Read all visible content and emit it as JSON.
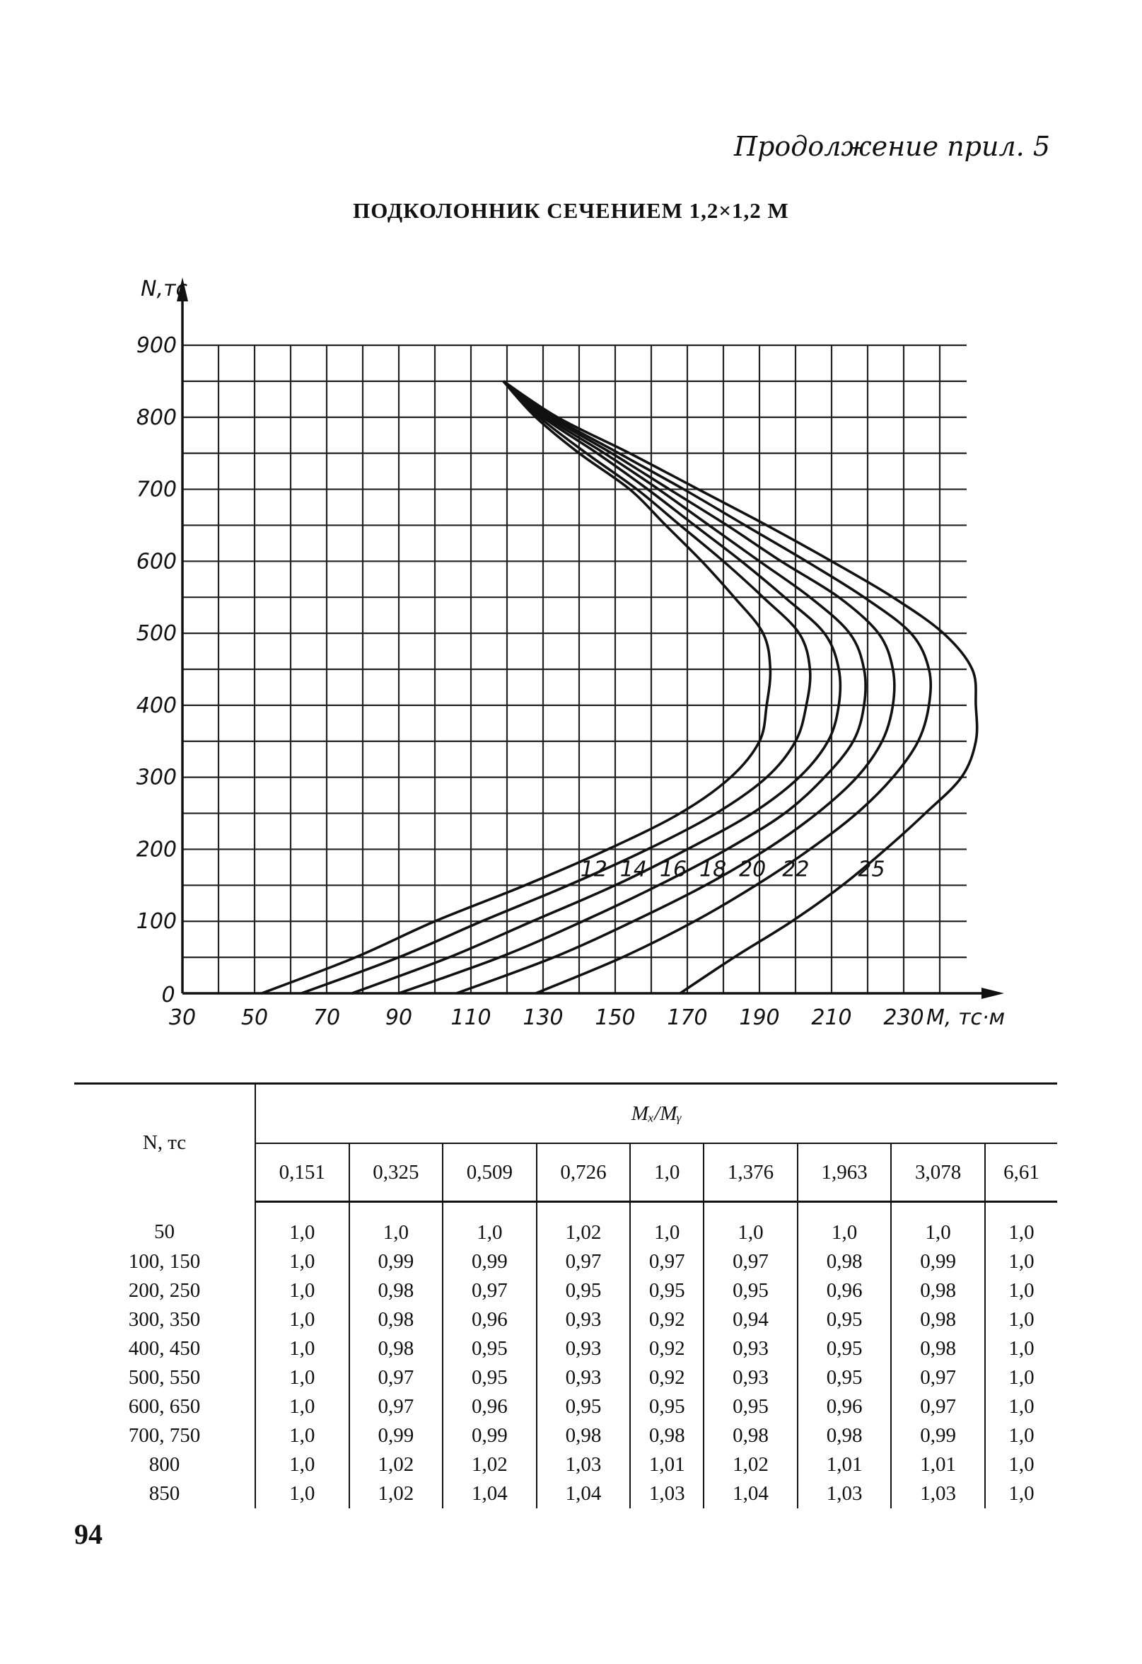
{
  "page": {
    "heading": "Продолжение прил. 5",
    "title": "ПОДКОЛОННИК СЕЧЕНИЕМ 1,2×1,2 М",
    "page_number": "94"
  },
  "chart_data": {
    "type": "line",
    "title": "",
    "xlabel": "M, тс·м",
    "ylabel": "N,тс",
    "origin_label": "0",
    "xlim": [
      30,
      240
    ],
    "ylim": [
      0,
      900
    ],
    "x_ticks": [
      30,
      50,
      70,
      90,
      110,
      130,
      150,
      170,
      190,
      210,
      230
    ],
    "y_ticks": [
      100,
      200,
      300,
      400,
      500,
      600,
      700,
      800,
      900
    ],
    "x_tick_labels": [
      "30",
      "50",
      "70",
      "90",
      "110",
      "130",
      "150",
      "170",
      "190",
      "210",
      "230"
    ],
    "y_tick_labels": [
      "100",
      "200",
      "300",
      "400",
      "500",
      "600",
      "700",
      "800",
      "900"
    ],
    "grid": true,
    "grid_step": {
      "x": 10,
      "y": 50
    },
    "series": [
      {
        "name": "12",
        "points": [
          [
            52,
            0
          ],
          [
            78,
            50
          ],
          [
            100,
            100
          ],
          [
            125,
            150
          ],
          [
            148,
            200
          ],
          [
            168,
            250
          ],
          [
            182,
            300
          ],
          [
            190,
            350
          ],
          [
            192,
            400
          ],
          [
            193,
            450
          ],
          [
            191,
            500
          ],
          [
            183,
            550
          ],
          [
            174,
            600
          ],
          [
            164,
            650
          ],
          [
            154,
            700
          ],
          [
            140,
            750
          ],
          [
            128,
            800
          ],
          [
            119,
            850
          ]
        ]
      },
      {
        "name": "14",
        "points": [
          [
            63,
            0
          ],
          [
            90,
            50
          ],
          [
            113,
            100
          ],
          [
            137,
            150
          ],
          [
            159,
            200
          ],
          [
            178,
            250
          ],
          [
            192,
            300
          ],
          [
            200,
            350
          ],
          [
            203,
            400
          ],
          [
            204,
            450
          ],
          [
            201,
            500
          ],
          [
            191,
            550
          ],
          [
            180,
            600
          ],
          [
            168,
            650
          ],
          [
            156,
            700
          ],
          [
            142,
            750
          ],
          [
            129,
            800
          ],
          [
            119,
            850
          ]
        ]
      },
      {
        "name": "16",
        "points": [
          [
            77,
            0
          ],
          [
            104,
            50
          ],
          [
            127,
            100
          ],
          [
            150,
            150
          ],
          [
            170,
            200
          ],
          [
            188,
            250
          ],
          [
            201,
            300
          ],
          [
            209,
            350
          ],
          [
            212,
            400
          ],
          [
            212,
            450
          ],
          [
            208,
            500
          ],
          [
            197,
            550
          ],
          [
            185,
            600
          ],
          [
            172,
            650
          ],
          [
            159,
            700
          ],
          [
            145,
            750
          ],
          [
            130,
            800
          ],
          [
            119,
            850
          ]
        ]
      },
      {
        "name": "18",
        "points": [
          [
            90,
            0
          ],
          [
            118,
            50
          ],
          [
            141,
            100
          ],
          [
            162,
            150
          ],
          [
            181,
            200
          ],
          [
            197,
            250
          ],
          [
            208,
            300
          ],
          [
            216,
            350
          ],
          [
            219,
            400
          ],
          [
            219,
            450
          ],
          [
            215,
            500
          ],
          [
            204,
            550
          ],
          [
            190,
            600
          ],
          [
            176,
            650
          ],
          [
            162,
            700
          ],
          [
            147,
            750
          ],
          [
            131,
            800
          ],
          [
            119,
            850
          ]
        ]
      },
      {
        "name": "20",
        "points": [
          [
            106,
            0
          ],
          [
            133,
            50
          ],
          [
            155,
            100
          ],
          [
            175,
            150
          ],
          [
            192,
            200
          ],
          [
            206,
            250
          ],
          [
            217,
            300
          ],
          [
            224,
            350
          ],
          [
            227,
            400
          ],
          [
            227,
            450
          ],
          [
            223,
            500
          ],
          [
            212,
            550
          ],
          [
            196,
            600
          ],
          [
            181,
            650
          ],
          [
            165,
            700
          ],
          [
            149,
            750
          ],
          [
            132,
            800
          ],
          [
            119,
            850
          ]
        ]
      },
      {
        "name": "22",
        "points": [
          [
            128,
            0
          ],
          [
            152,
            50
          ],
          [
            172,
            100
          ],
          [
            189,
            150
          ],
          [
            204,
            200
          ],
          [
            217,
            250
          ],
          [
            227,
            300
          ],
          [
            234,
            350
          ],
          [
            237,
            400
          ],
          [
            237,
            450
          ],
          [
            232,
            500
          ],
          [
            219,
            550
          ],
          [
            203,
            600
          ],
          [
            186,
            650
          ],
          [
            169,
            700
          ],
          [
            151,
            750
          ],
          [
            133,
            800
          ],
          [
            119,
            850
          ]
        ]
      },
      {
        "name": "25",
        "points": [
          [
            168,
            0
          ],
          [
            183,
            50
          ],
          [
            199,
            100
          ],
          [
            213,
            150
          ],
          [
            225,
            200
          ],
          [
            236,
            250
          ],
          [
            246,
            300
          ],
          [
            250,
            350
          ],
          [
            250,
            400
          ],
          [
            249,
            450
          ],
          [
            241,
            500
          ],
          [
            227,
            550
          ],
          [
            210,
            600
          ],
          [
            192,
            650
          ],
          [
            173,
            700
          ],
          [
            154,
            750
          ],
          [
            134,
            800
          ],
          [
            119,
            850
          ]
        ]
      }
    ]
  },
  "table": {
    "row_header": "N, тс",
    "ratio_header": "Mₓ/Mᵧ",
    "columns": [
      "0,151",
      "0,325",
      "0,509",
      "0,726",
      "1,0",
      "1,376",
      "1,963",
      "3,078",
      "6,61"
    ],
    "rows": [
      {
        "n": "50",
        "values": [
          "1,0",
          "1,0",
          "1,0",
          "1,02",
          "1,0",
          "1,0",
          "1,0",
          "1,0",
          "1,0"
        ]
      },
      {
        "n": "100, 150",
        "values": [
          "1,0",
          "0,99",
          "0,99",
          "0,97",
          "0,97",
          "0,97",
          "0,98",
          "0,99",
          "1,0"
        ]
      },
      {
        "n": "200, 250",
        "values": [
          "1,0",
          "0,98",
          "0,97",
          "0,95",
          "0,95",
          "0,95",
          "0,96",
          "0,98",
          "1,0"
        ]
      },
      {
        "n": "300, 350",
        "values": [
          "1,0",
          "0,98",
          "0,96",
          "0,93",
          "0,92",
          "0,94",
          "0,95",
          "0,98",
          "1,0"
        ]
      },
      {
        "n": "400, 450",
        "values": [
          "1,0",
          "0,98",
          "0,95",
          "0,93",
          "0,92",
          "0,93",
          "0,95",
          "0,98",
          "1,0"
        ]
      },
      {
        "n": "500, 550",
        "values": [
          "1,0",
          "0,97",
          "0,95",
          "0,93",
          "0,92",
          "0,93",
          "0,95",
          "0,97",
          "1,0"
        ]
      },
      {
        "n": "600, 650",
        "values": [
          "1,0",
          "0,97",
          "0,96",
          "0,95",
          "0,95",
          "0,95",
          "0,96",
          "0,97",
          "1,0"
        ]
      },
      {
        "n": "700, 750",
        "values": [
          "1,0",
          "0,99",
          "0,99",
          "0,98",
          "0,98",
          "0,98",
          "0,98",
          "0,99",
          "1,0"
        ]
      },
      {
        "n": "800",
        "values": [
          "1,0",
          "1,02",
          "1,02",
          "1,03",
          "1,01",
          "1,02",
          "1,01",
          "1,01",
          "1,0"
        ]
      },
      {
        "n": "850",
        "values": [
          "1,0",
          "1,02",
          "1,04",
          "1,04",
          "1,03",
          "1,04",
          "1,03",
          "1,03",
          "1,0"
        ]
      }
    ]
  }
}
